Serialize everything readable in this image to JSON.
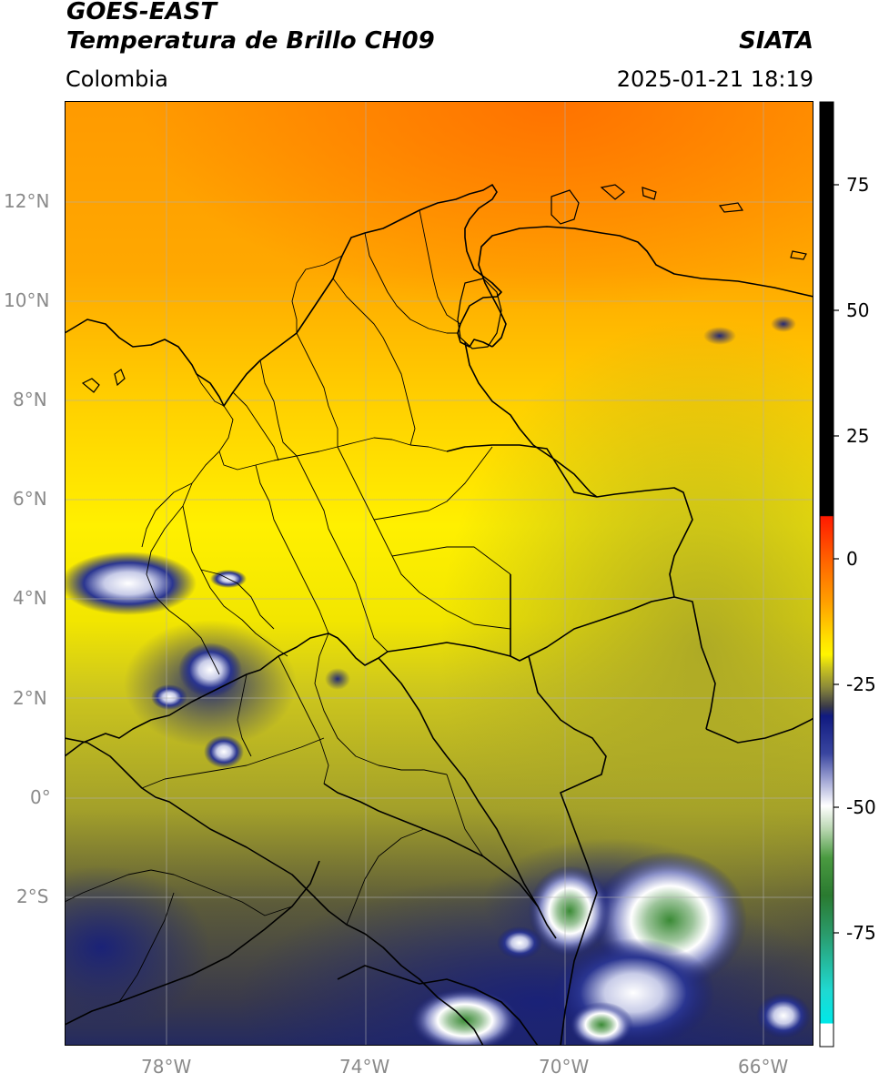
{
  "header": {
    "satellite": "GOES-EAST",
    "product": "Temperatura de Brillo CH09",
    "org": "SIATA",
    "region": "Colombia",
    "datetime": "2025-01-21 18:19"
  },
  "axes": {
    "lat_labels": [
      "12°N",
      "10°N",
      "8°N",
      "6°N",
      "4°N",
      "2°N",
      "0°",
      "2°S"
    ],
    "lon_labels": [
      "78°W",
      "74°W",
      "70°W",
      "66°W"
    ]
  },
  "colorbar": {
    "ticks": [
      "75",
      "50",
      "25",
      "0",
      "-25",
      "-50",
      "-75"
    ]
  },
  "colors": {
    "warm": "#ff7a00",
    "mid": "#ffee00",
    "olive": "#c9c21a",
    "dark": "#4a4a3a",
    "cold": "#101c80",
    "white": "#ffffff",
    "green": "#3a8a35"
  }
}
